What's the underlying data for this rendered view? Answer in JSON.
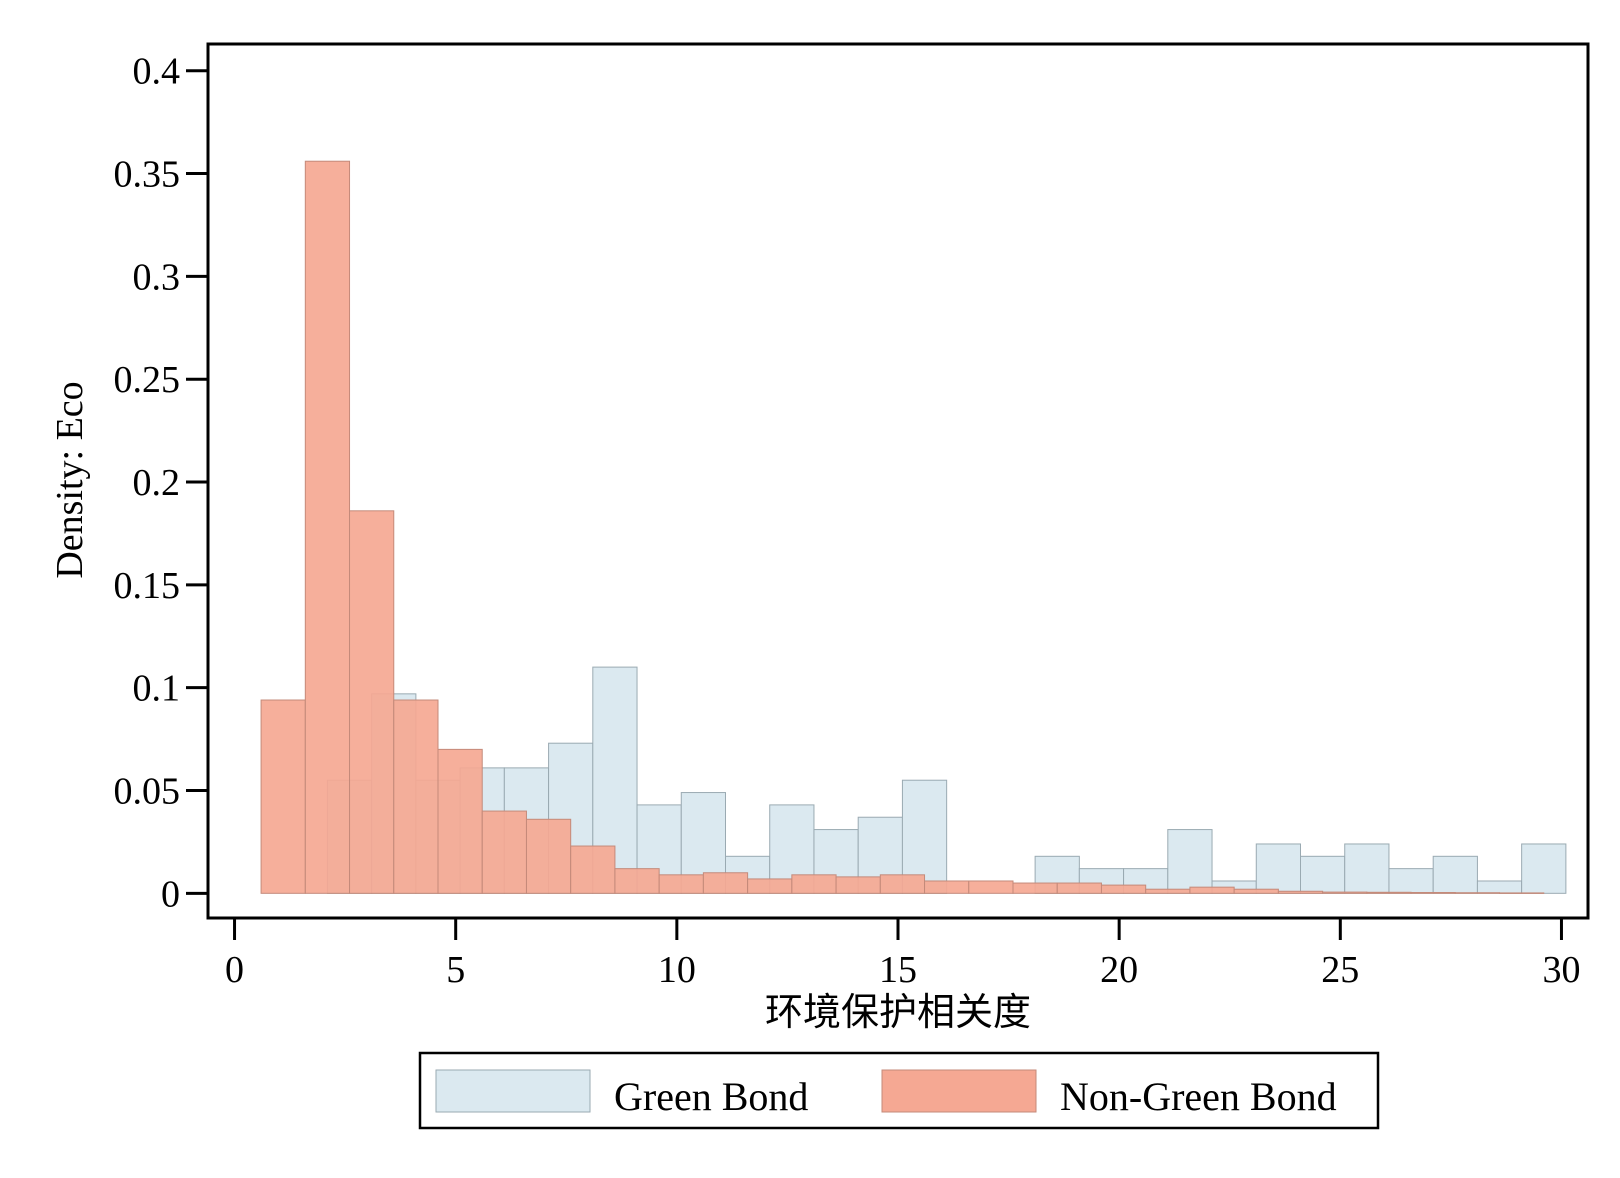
{
  "chart_data": {
    "type": "bar",
    "title": "",
    "xlabel": "环境保护相关度",
    "ylabel": "Density: Eco",
    "xlim": [
      -0.6,
      30.6
    ],
    "ylim": [
      -0.012,
      0.413
    ],
    "xticks": [
      0,
      5,
      10,
      15,
      20,
      25,
      30
    ],
    "xtick_labels": [
      "0",
      "5",
      "10",
      "15",
      "20",
      "25",
      "30"
    ],
    "yticks": [
      0,
      0.05,
      0.1,
      0.15,
      0.2,
      0.25,
      0.3,
      0.35,
      0.4
    ],
    "ytick_labels": [
      "0",
      "0.05",
      "0.1",
      "0.15",
      "0.2",
      "0.25",
      "0.3",
      "0.35",
      "0.4"
    ],
    "grid": false,
    "legend_position": "bottom",
    "series": [
      {
        "name": "Green Bond",
        "color": "#dbe9f0",
        "stroke": "#9aaab2",
        "bin_start": 2.1,
        "bin_width": 1.0,
        "values": [
          0.055,
          0.097,
          0.055,
          0.061,
          0.061,
          0.073,
          0.11,
          0.043,
          0.049,
          0.018,
          0.043,
          0.031,
          0.037,
          0.055,
          0.0,
          0.0,
          0.018,
          0.012,
          0.012,
          0.031,
          0.006,
          0.024,
          0.018,
          0.024,
          0.012,
          0.018,
          0.006,
          0.024
        ]
      },
      {
        "name": "Non-Green Bond",
        "color": "#f5a893",
        "stroke": "#c48a7a",
        "bin_start": 0.6,
        "bin_width": 1.0,
        "values": [
          0.094,
          0.356,
          0.186,
          0.094,
          0.07,
          0.04,
          0.036,
          0.023,
          0.012,
          0.009,
          0.01,
          0.007,
          0.009,
          0.008,
          0.009,
          0.006,
          0.006,
          0.005,
          0.005,
          0.004,
          0.002,
          0.003,
          0.002,
          0.001,
          0.0006,
          0.0005,
          0.0004,
          0.0003,
          0.0002
        ]
      }
    ]
  }
}
